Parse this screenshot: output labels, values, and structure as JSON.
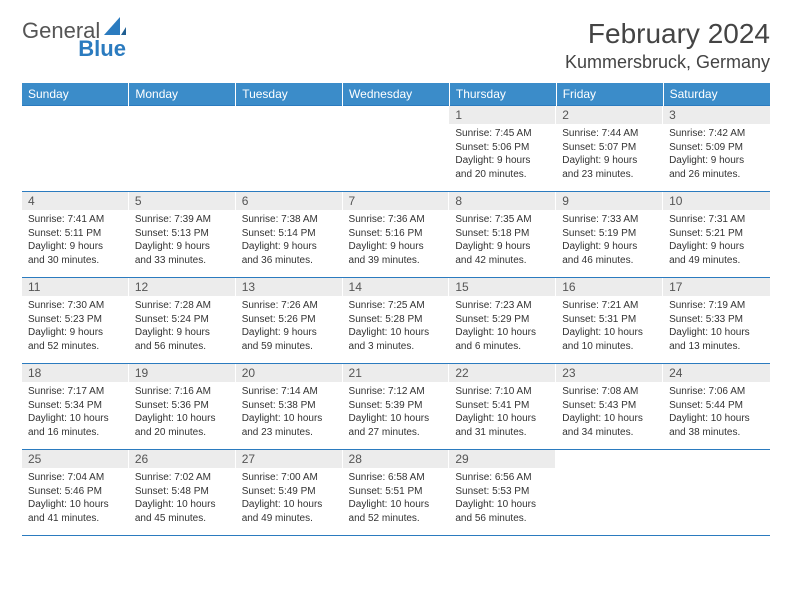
{
  "logo": {
    "general": "General",
    "blue": "Blue"
  },
  "title": "February 2024",
  "location": "Kummersbruck, Germany",
  "colors": {
    "header_bg": "#3b8cc9",
    "header_text": "#ffffff",
    "border": "#2b7bbf",
    "daynum_bg": "#ececec",
    "logo_blue": "#2b7bbf"
  },
  "weekdays": [
    "Sunday",
    "Monday",
    "Tuesday",
    "Wednesday",
    "Thursday",
    "Friday",
    "Saturday"
  ],
  "weeks": [
    [
      {
        "empty": true
      },
      {
        "empty": true
      },
      {
        "empty": true
      },
      {
        "empty": true
      },
      {
        "n": "1",
        "sr": "Sunrise: 7:45 AM",
        "ss": "Sunset: 5:06 PM",
        "d1": "Daylight: 9 hours",
        "d2": "and 20 minutes."
      },
      {
        "n": "2",
        "sr": "Sunrise: 7:44 AM",
        "ss": "Sunset: 5:07 PM",
        "d1": "Daylight: 9 hours",
        "d2": "and 23 minutes."
      },
      {
        "n": "3",
        "sr": "Sunrise: 7:42 AM",
        "ss": "Sunset: 5:09 PM",
        "d1": "Daylight: 9 hours",
        "d2": "and 26 minutes."
      }
    ],
    [
      {
        "n": "4",
        "sr": "Sunrise: 7:41 AM",
        "ss": "Sunset: 5:11 PM",
        "d1": "Daylight: 9 hours",
        "d2": "and 30 minutes."
      },
      {
        "n": "5",
        "sr": "Sunrise: 7:39 AM",
        "ss": "Sunset: 5:13 PM",
        "d1": "Daylight: 9 hours",
        "d2": "and 33 minutes."
      },
      {
        "n": "6",
        "sr": "Sunrise: 7:38 AM",
        "ss": "Sunset: 5:14 PM",
        "d1": "Daylight: 9 hours",
        "d2": "and 36 minutes."
      },
      {
        "n": "7",
        "sr": "Sunrise: 7:36 AM",
        "ss": "Sunset: 5:16 PM",
        "d1": "Daylight: 9 hours",
        "d2": "and 39 minutes."
      },
      {
        "n": "8",
        "sr": "Sunrise: 7:35 AM",
        "ss": "Sunset: 5:18 PM",
        "d1": "Daylight: 9 hours",
        "d2": "and 42 minutes."
      },
      {
        "n": "9",
        "sr": "Sunrise: 7:33 AM",
        "ss": "Sunset: 5:19 PM",
        "d1": "Daylight: 9 hours",
        "d2": "and 46 minutes."
      },
      {
        "n": "10",
        "sr": "Sunrise: 7:31 AM",
        "ss": "Sunset: 5:21 PM",
        "d1": "Daylight: 9 hours",
        "d2": "and 49 minutes."
      }
    ],
    [
      {
        "n": "11",
        "sr": "Sunrise: 7:30 AM",
        "ss": "Sunset: 5:23 PM",
        "d1": "Daylight: 9 hours",
        "d2": "and 52 minutes."
      },
      {
        "n": "12",
        "sr": "Sunrise: 7:28 AM",
        "ss": "Sunset: 5:24 PM",
        "d1": "Daylight: 9 hours",
        "d2": "and 56 minutes."
      },
      {
        "n": "13",
        "sr": "Sunrise: 7:26 AM",
        "ss": "Sunset: 5:26 PM",
        "d1": "Daylight: 9 hours",
        "d2": "and 59 minutes."
      },
      {
        "n": "14",
        "sr": "Sunrise: 7:25 AM",
        "ss": "Sunset: 5:28 PM",
        "d1": "Daylight: 10 hours",
        "d2": "and 3 minutes."
      },
      {
        "n": "15",
        "sr": "Sunrise: 7:23 AM",
        "ss": "Sunset: 5:29 PM",
        "d1": "Daylight: 10 hours",
        "d2": "and 6 minutes."
      },
      {
        "n": "16",
        "sr": "Sunrise: 7:21 AM",
        "ss": "Sunset: 5:31 PM",
        "d1": "Daylight: 10 hours",
        "d2": "and 10 minutes."
      },
      {
        "n": "17",
        "sr": "Sunrise: 7:19 AM",
        "ss": "Sunset: 5:33 PM",
        "d1": "Daylight: 10 hours",
        "d2": "and 13 minutes."
      }
    ],
    [
      {
        "n": "18",
        "sr": "Sunrise: 7:17 AM",
        "ss": "Sunset: 5:34 PM",
        "d1": "Daylight: 10 hours",
        "d2": "and 16 minutes."
      },
      {
        "n": "19",
        "sr": "Sunrise: 7:16 AM",
        "ss": "Sunset: 5:36 PM",
        "d1": "Daylight: 10 hours",
        "d2": "and 20 minutes."
      },
      {
        "n": "20",
        "sr": "Sunrise: 7:14 AM",
        "ss": "Sunset: 5:38 PM",
        "d1": "Daylight: 10 hours",
        "d2": "and 23 minutes."
      },
      {
        "n": "21",
        "sr": "Sunrise: 7:12 AM",
        "ss": "Sunset: 5:39 PM",
        "d1": "Daylight: 10 hours",
        "d2": "and 27 minutes."
      },
      {
        "n": "22",
        "sr": "Sunrise: 7:10 AM",
        "ss": "Sunset: 5:41 PM",
        "d1": "Daylight: 10 hours",
        "d2": "and 31 minutes."
      },
      {
        "n": "23",
        "sr": "Sunrise: 7:08 AM",
        "ss": "Sunset: 5:43 PM",
        "d1": "Daylight: 10 hours",
        "d2": "and 34 minutes."
      },
      {
        "n": "24",
        "sr": "Sunrise: 7:06 AM",
        "ss": "Sunset: 5:44 PM",
        "d1": "Daylight: 10 hours",
        "d2": "and 38 minutes."
      }
    ],
    [
      {
        "n": "25",
        "sr": "Sunrise: 7:04 AM",
        "ss": "Sunset: 5:46 PM",
        "d1": "Daylight: 10 hours",
        "d2": "and 41 minutes."
      },
      {
        "n": "26",
        "sr": "Sunrise: 7:02 AM",
        "ss": "Sunset: 5:48 PM",
        "d1": "Daylight: 10 hours",
        "d2": "and 45 minutes."
      },
      {
        "n": "27",
        "sr": "Sunrise: 7:00 AM",
        "ss": "Sunset: 5:49 PM",
        "d1": "Daylight: 10 hours",
        "d2": "and 49 minutes."
      },
      {
        "n": "28",
        "sr": "Sunrise: 6:58 AM",
        "ss": "Sunset: 5:51 PM",
        "d1": "Daylight: 10 hours",
        "d2": "and 52 minutes."
      },
      {
        "n": "29",
        "sr": "Sunrise: 6:56 AM",
        "ss": "Sunset: 5:53 PM",
        "d1": "Daylight: 10 hours",
        "d2": "and 56 minutes."
      },
      {
        "empty": true
      },
      {
        "empty": true
      }
    ]
  ]
}
